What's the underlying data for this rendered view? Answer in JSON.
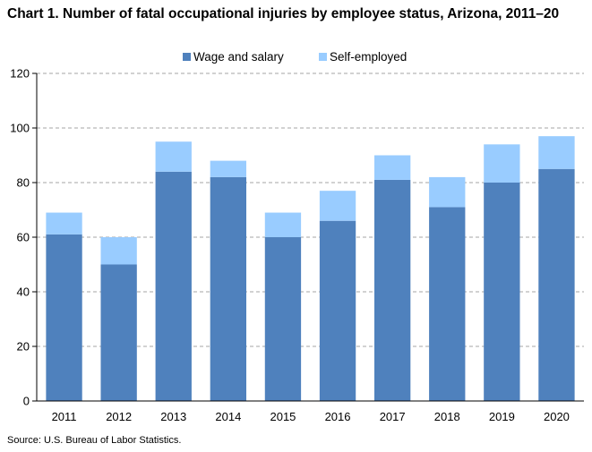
{
  "chart_data": {
    "type": "bar",
    "stacked": true,
    "title": "Chart 1. Number of fatal occupational injuries by employee status, Arizona, 2011–20",
    "xlabel": "",
    "ylabel": "",
    "ylim": [
      0,
      120
    ],
    "yticks": [
      0,
      20,
      40,
      60,
      80,
      100,
      120
    ],
    "grid": true,
    "legend_position": "top",
    "categories": [
      "2011",
      "2012",
      "2013",
      "2014",
      "2015",
      "2016",
      "2017",
      "2018",
      "2019",
      "2020"
    ],
    "series": [
      {
        "name": "Wage and salary",
        "color": "#4f81bd",
        "values": [
          61,
          50,
          84,
          82,
          60,
          66,
          81,
          71,
          80,
          85
        ]
      },
      {
        "name": "Self-employed",
        "color": "#99ccff",
        "values": [
          8,
          10,
          11,
          6,
          9,
          11,
          9,
          11,
          14,
          12
        ]
      }
    ],
    "source": "Source: U.S. Bureau of Labor Statistics."
  }
}
